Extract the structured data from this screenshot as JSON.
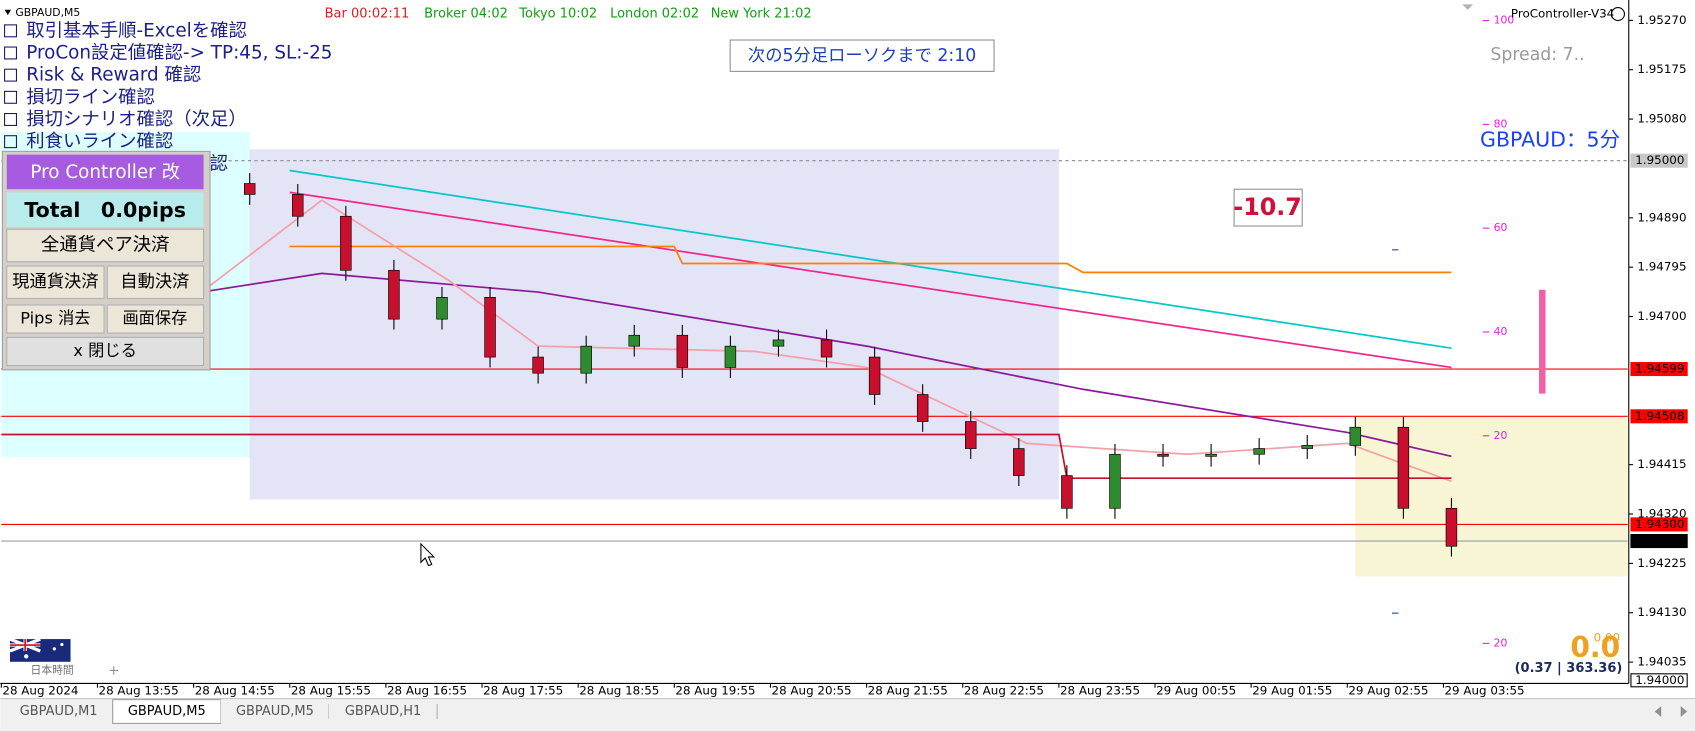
{
  "window": {
    "symbol": "GBPAUD,M5",
    "indicator_name": "ProController-V34",
    "spread": "Spread: 7..",
    "pair_title": "GBPAUD：5分",
    "countdown": "次の5分足ローソクまで 2:10",
    "pl_box": "-10.7",
    "pips_big": "0.0",
    "pips_small": "0.00",
    "stats": "(0.37 | 363.36)",
    "timezone": "日本時間"
  },
  "clocks": [
    "Bar 00:02:11",
    "Broker 04:02",
    "Tokyo 10:02",
    "London 02:02",
    "New York 21:02"
  ],
  "checklist": [
    "取引基本手順-Excelを確認",
    "ProCon設定値確認-> TP:45, SL:-25",
    "Risk & Reward 確認",
    "損切ライン確認",
    "損切シナリオ確認（次足）",
    "利食いライン確認",
    "エントリーシナリオ確認"
  ],
  "panel": {
    "title": "Pro Controller 改",
    "total": "Total　0.0pips",
    "buttons": [
      "全通貨ペア決済",
      "現通貨決済",
      "自動決済",
      "Pips 消去",
      "画面保存",
      "x 閉じる"
    ]
  },
  "osc_labels": [
    "100",
    "80",
    "60",
    "40",
    "20",
    "20"
  ],
  "tabs": [
    "GBPAUD,M1",
    "GBPAUD,M5",
    "GBPAUD,M5",
    "GBPAUD,H1"
  ],
  "active_tab": 1,
  "chart_data": {
    "type": "candlestick",
    "x": [
      "28 Aug 15:00",
      "28 Aug 15:30",
      "28 Aug 16:00",
      "28 Aug 16:30",
      "28 Aug 17:00",
      "28 Aug 17:30",
      "28 Aug 18:00",
      "28 Aug 18:30",
      "28 Aug 19:00",
      "28 Aug 19:30",
      "28 Aug 20:00",
      "28 Aug 20:30",
      "28 Aug 21:00",
      "28 Aug 21:30",
      "28 Aug 22:00",
      "28 Aug 22:30",
      "28 Aug 23:00",
      "28 Aug 23:30",
      "29 Aug 00:00",
      "29 Aug 00:30",
      "29 Aug 01:00",
      "29 Aug 01:30",
      "29 Aug 02:00",
      "29 Aug 02:30",
      "29 Aug 03:00",
      "29 Aug 03:30",
      "29 Aug 04:00"
    ],
    "open": [
      1.9497,
      1.94956,
      1.94935,
      1.94893,
      1.94789,
      1.94695,
      1.94737,
      1.94622,
      1.94591,
      1.94643,
      1.94664,
      1.94602,
      1.94643,
      1.94655,
      1.94622,
      1.9455,
      1.94498,
      1.94446,
      1.94394,
      1.94331,
      1.94435,
      1.94431,
      1.94435,
      1.94446,
      1.94452,
      1.94487,
      1.94331
    ],
    "high": [
      1.9499,
      1.94976,
      1.94955,
      1.94913,
      1.94809,
      1.94757,
      1.94757,
      1.94642,
      1.94663,
      1.94684,
      1.94684,
      1.94663,
      1.94675,
      1.94675,
      1.94642,
      1.9457,
      1.94518,
      1.94466,
      1.94414,
      1.94455,
      1.94455,
      1.94455,
      1.94466,
      1.94472,
      1.94507,
      1.94507,
      1.94351
    ],
    "low": [
      1.94936,
      1.94915,
      1.94873,
      1.94769,
      1.94675,
      1.94675,
      1.94602,
      1.94571,
      1.94571,
      1.94623,
      1.94582,
      1.94582,
      1.94623,
      1.94602,
      1.9453,
      1.94478,
      1.94426,
      1.94374,
      1.94311,
      1.94311,
      1.94411,
      1.94411,
      1.94415,
      1.94426,
      1.94432,
      1.94311,
      1.94238
    ],
    "close": [
      1.94956,
      1.94935,
      1.94893,
      1.94789,
      1.94695,
      1.94737,
      1.94622,
      1.94591,
      1.94643,
      1.94664,
      1.94602,
      1.94643,
      1.94655,
      1.94622,
      1.9455,
      1.94498,
      1.94446,
      1.94394,
      1.94331,
      1.94435,
      1.94431,
      1.94435,
      1.94446,
      1.94452,
      1.94487,
      1.94331,
      1.94258
    ],
    "up_color": "#2e8b2e",
    "down_color": "#c8102e",
    "xlim": [
      "28 Aug 12:55",
      "29 Aug 05:50"
    ],
    "ylim": [
      1.93994,
      1.95305
    ],
    "xticks": [
      {
        "value": "28 Aug 12:55",
        "label": "28 Aug 2024"
      },
      "28 Aug 13:55",
      "28 Aug 14:55",
      "28 Aug 15:55",
      "28 Aug 16:55",
      "28 Aug 17:55",
      "28 Aug 18:55",
      "28 Aug 19:55",
      "28 Aug 20:55",
      "28 Aug 21:55",
      "28 Aug 22:55",
      "28 Aug 23:55",
      "29 Aug 00:55",
      "29 Aug 01:55",
      "29 Aug 02:55",
      "29 Aug 03:55"
    ],
    "yticks": [
      {
        "value": 1.9527,
        "label": "1.95270"
      },
      {
        "value": 1.95175,
        "label": "1.95175"
      },
      {
        "value": 1.9508,
        "label": "1.95080"
      },
      {
        "value": 1.9489,
        "label": "1.94890"
      },
      {
        "value": 1.94795,
        "label": "1.94795"
      },
      {
        "value": 1.947,
        "label": "1.94700"
      },
      {
        "value": 1.94415,
        "label": "1.94415"
      },
      {
        "value": 1.9432,
        "label": "1.94320"
      },
      {
        "value": 1.94225,
        "label": "1.94225"
      },
      {
        "value": 1.9413,
        "label": "1.94130"
      },
      {
        "value": 1.94035,
        "label": "1.94035"
      }
    ],
    "boxes": [
      {
        "x": [
          "28 Aug 12:55",
          "28 Aug 15:30"
        ],
        "y": [
          1.95055,
          1.9443
        ],
        "color": "#dcffff"
      },
      {
        "x": [
          "28 Aug 15:30",
          "28 Aug 23:55"
        ],
        "y": [
          1.95022,
          1.94348
        ],
        "color": "#e4e4f7"
      },
      {
        "x": [
          "29 Aug 03:00",
          "29 Aug 05:50"
        ],
        "y": [
          1.94508,
          1.942
        ],
        "color": "#f7f5d4"
      }
    ],
    "levels": [
      {
        "value": 1.95,
        "label": "1.95000",
        "color": "#c8c8c8",
        "text_color": "#000000",
        "line_color": "#8a8a8a",
        "line": "dash"
      },
      {
        "value": 1.94599,
        "label": "1.94599",
        "color": "#ff0000",
        "text_color": "#ffffff",
        "line_color": "#ff0000",
        "line": "solid"
      },
      {
        "value": 1.94508,
        "label": "1.94508",
        "color": "#ff0000",
        "text_color": "#ffffff",
        "line_color": "#ff0000",
        "line": "solid"
      },
      {
        "value": 1.943,
        "label": "1.94300",
        "color": "#ff0000",
        "text_color": "#ffffff",
        "line_color": "#ff0000",
        "line": "solid"
      },
      {
        "value": 1.94268,
        "label": "1.94268",
        "color": "#000000",
        "text_color": "#ffffff",
        "line_color": "#9aa0a0",
        "line": "solid"
      },
      {
        "value": 1.94,
        "label": "1.94000",
        "color": "#ffffff",
        "text_color": "#000000",
        "line_color": "#ffffff",
        "line": "none"
      }
    ],
    "series": [
      {
        "color": "#00c8c8",
        "x": [
          "28 Aug 15:55",
          "29 Aug 04:00"
        ],
        "values": [
          1.94981,
          1.94639
        ]
      },
      {
        "color": "#f0288c",
        "x": [
          "28 Aug 15:55",
          "29 Aug 04:00"
        ],
        "values": [
          1.94939,
          1.94602
        ]
      },
      {
        "color": "#ff8000",
        "x": [
          "28 Aug 15:55",
          "28 Aug 19:55",
          "28 Aug 20:00",
          "29 Aug 00:00",
          "29 Aug 00:10",
          "29 Aug 04:00"
        ],
        "values": [
          1.94835,
          1.94835,
          1.94802,
          1.94802,
          1.94785,
          1.94785
        ]
      },
      {
        "color": "#8b1a9a",
        "x": [
          "28 Aug 15:00",
          "28 Aug 16:15",
          "28 Aug 18:30",
          "28 Aug 21:55",
          "29 Aug 00:10",
          "29 Aug 02:55",
          "29 Aug 04:00"
        ],
        "values": [
          1.94747,
          1.94783,
          1.94747,
          1.94643,
          1.9456,
          1.94477,
          1.94431
        ]
      },
      {
        "color": "#f4a0a8",
        "x": [
          "28 Aug 15:00",
          "28 Aug 16:15",
          "28 Aug 17:35",
          "28 Aug 18:30",
          "28 Aug 20:45",
          "28 Aug 21:55",
          "28 Aug 23:35",
          "29 Aug 01:15",
          "29 Aug 02:55",
          "29 Aug 04:00"
        ],
        "values": [
          1.94747,
          1.94924,
          1.94768,
          1.94643,
          1.94633,
          1.94602,
          1.94456,
          1.94435,
          1.94456,
          1.94383
        ]
      },
      {
        "color": "#c8102e",
        "x": [
          "28 Aug 12:55",
          "28 Aug 23:55",
          "29 Aug 00:00",
          "29 Aug 04:00"
        ],
        "values": [
          1.94473,
          1.94473,
          1.94389,
          1.94389
        ]
      }
    ]
  }
}
